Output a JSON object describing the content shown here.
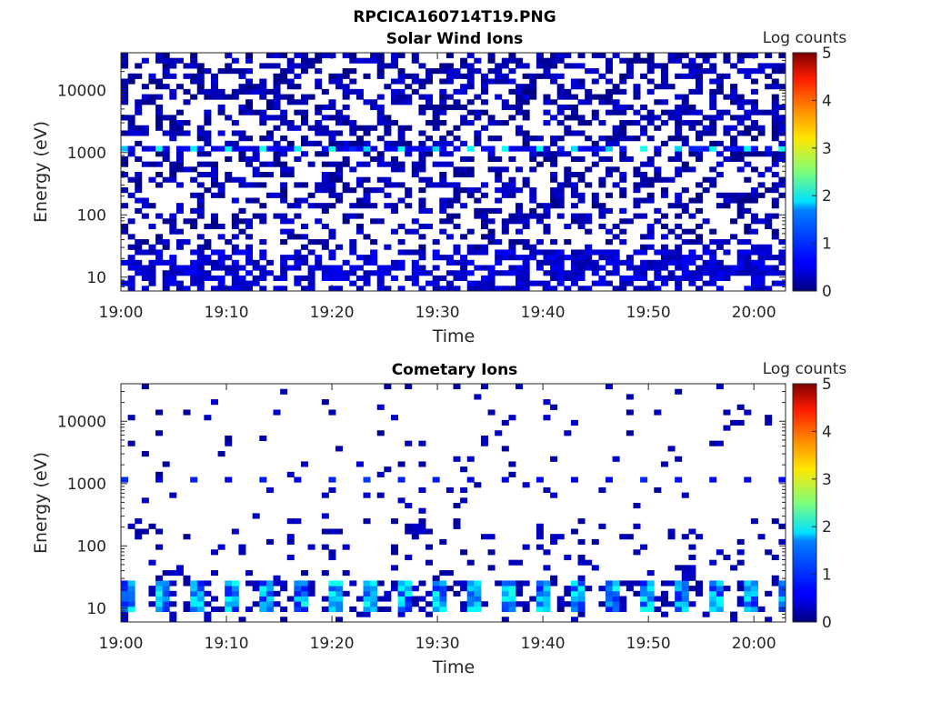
{
  "figure_title": "RPCICA160714T19.PNG",
  "colorbar": {
    "label": "Log counts",
    "ticks": [
      "0",
      "1",
      "2",
      "3",
      "4",
      "5"
    ],
    "range": [
      0,
      5
    ],
    "colormap": "jet"
  },
  "chart_data": [
    {
      "type": "heatmap",
      "title": "Solar Wind Ions",
      "xlabel": "Time",
      "ylabel": "Energy (eV)",
      "yscale": "log",
      "ylim": [
        6,
        40000
      ],
      "xlim": [
        "19:00",
        "20:03"
      ],
      "x_ticks": [
        "19:00",
        "19:10",
        "19:20",
        "19:30",
        "19:40",
        "19:50",
        "20:00"
      ],
      "y_ticks": [
        "10",
        "100",
        "1000",
        "10000"
      ],
      "z_range": [
        0,
        5
      ],
      "description_values": {
        "sparse_background_level": 0.3,
        "peak_band_energy_eV": 1100,
        "peak_band_level": 2.0,
        "low_energy_block_range_eV": [
          6,
          28
        ],
        "low_energy_block_level": 0.2
      }
    },
    {
      "type": "heatmap",
      "title": "Cometary Ions",
      "xlabel": "Time",
      "ylabel": "Energy (eV)",
      "yscale": "log",
      "ylim": [
        6,
        40000
      ],
      "xlim": [
        "19:00",
        "20:03"
      ],
      "x_ticks": [
        "19:00",
        "19:10",
        "19:20",
        "19:30",
        "19:40",
        "19:50",
        "20:00"
      ],
      "y_ticks": [
        "10",
        "100",
        "1000",
        "10000"
      ],
      "z_range": [
        0,
        5
      ],
      "description_values": {
        "periodic_band_energy_eV": 1200,
        "periodic_band_level": 0.8,
        "low_energy_peak_range_eV": [
          8,
          30
        ],
        "low_energy_peak_level": 2.0
      }
    }
  ]
}
